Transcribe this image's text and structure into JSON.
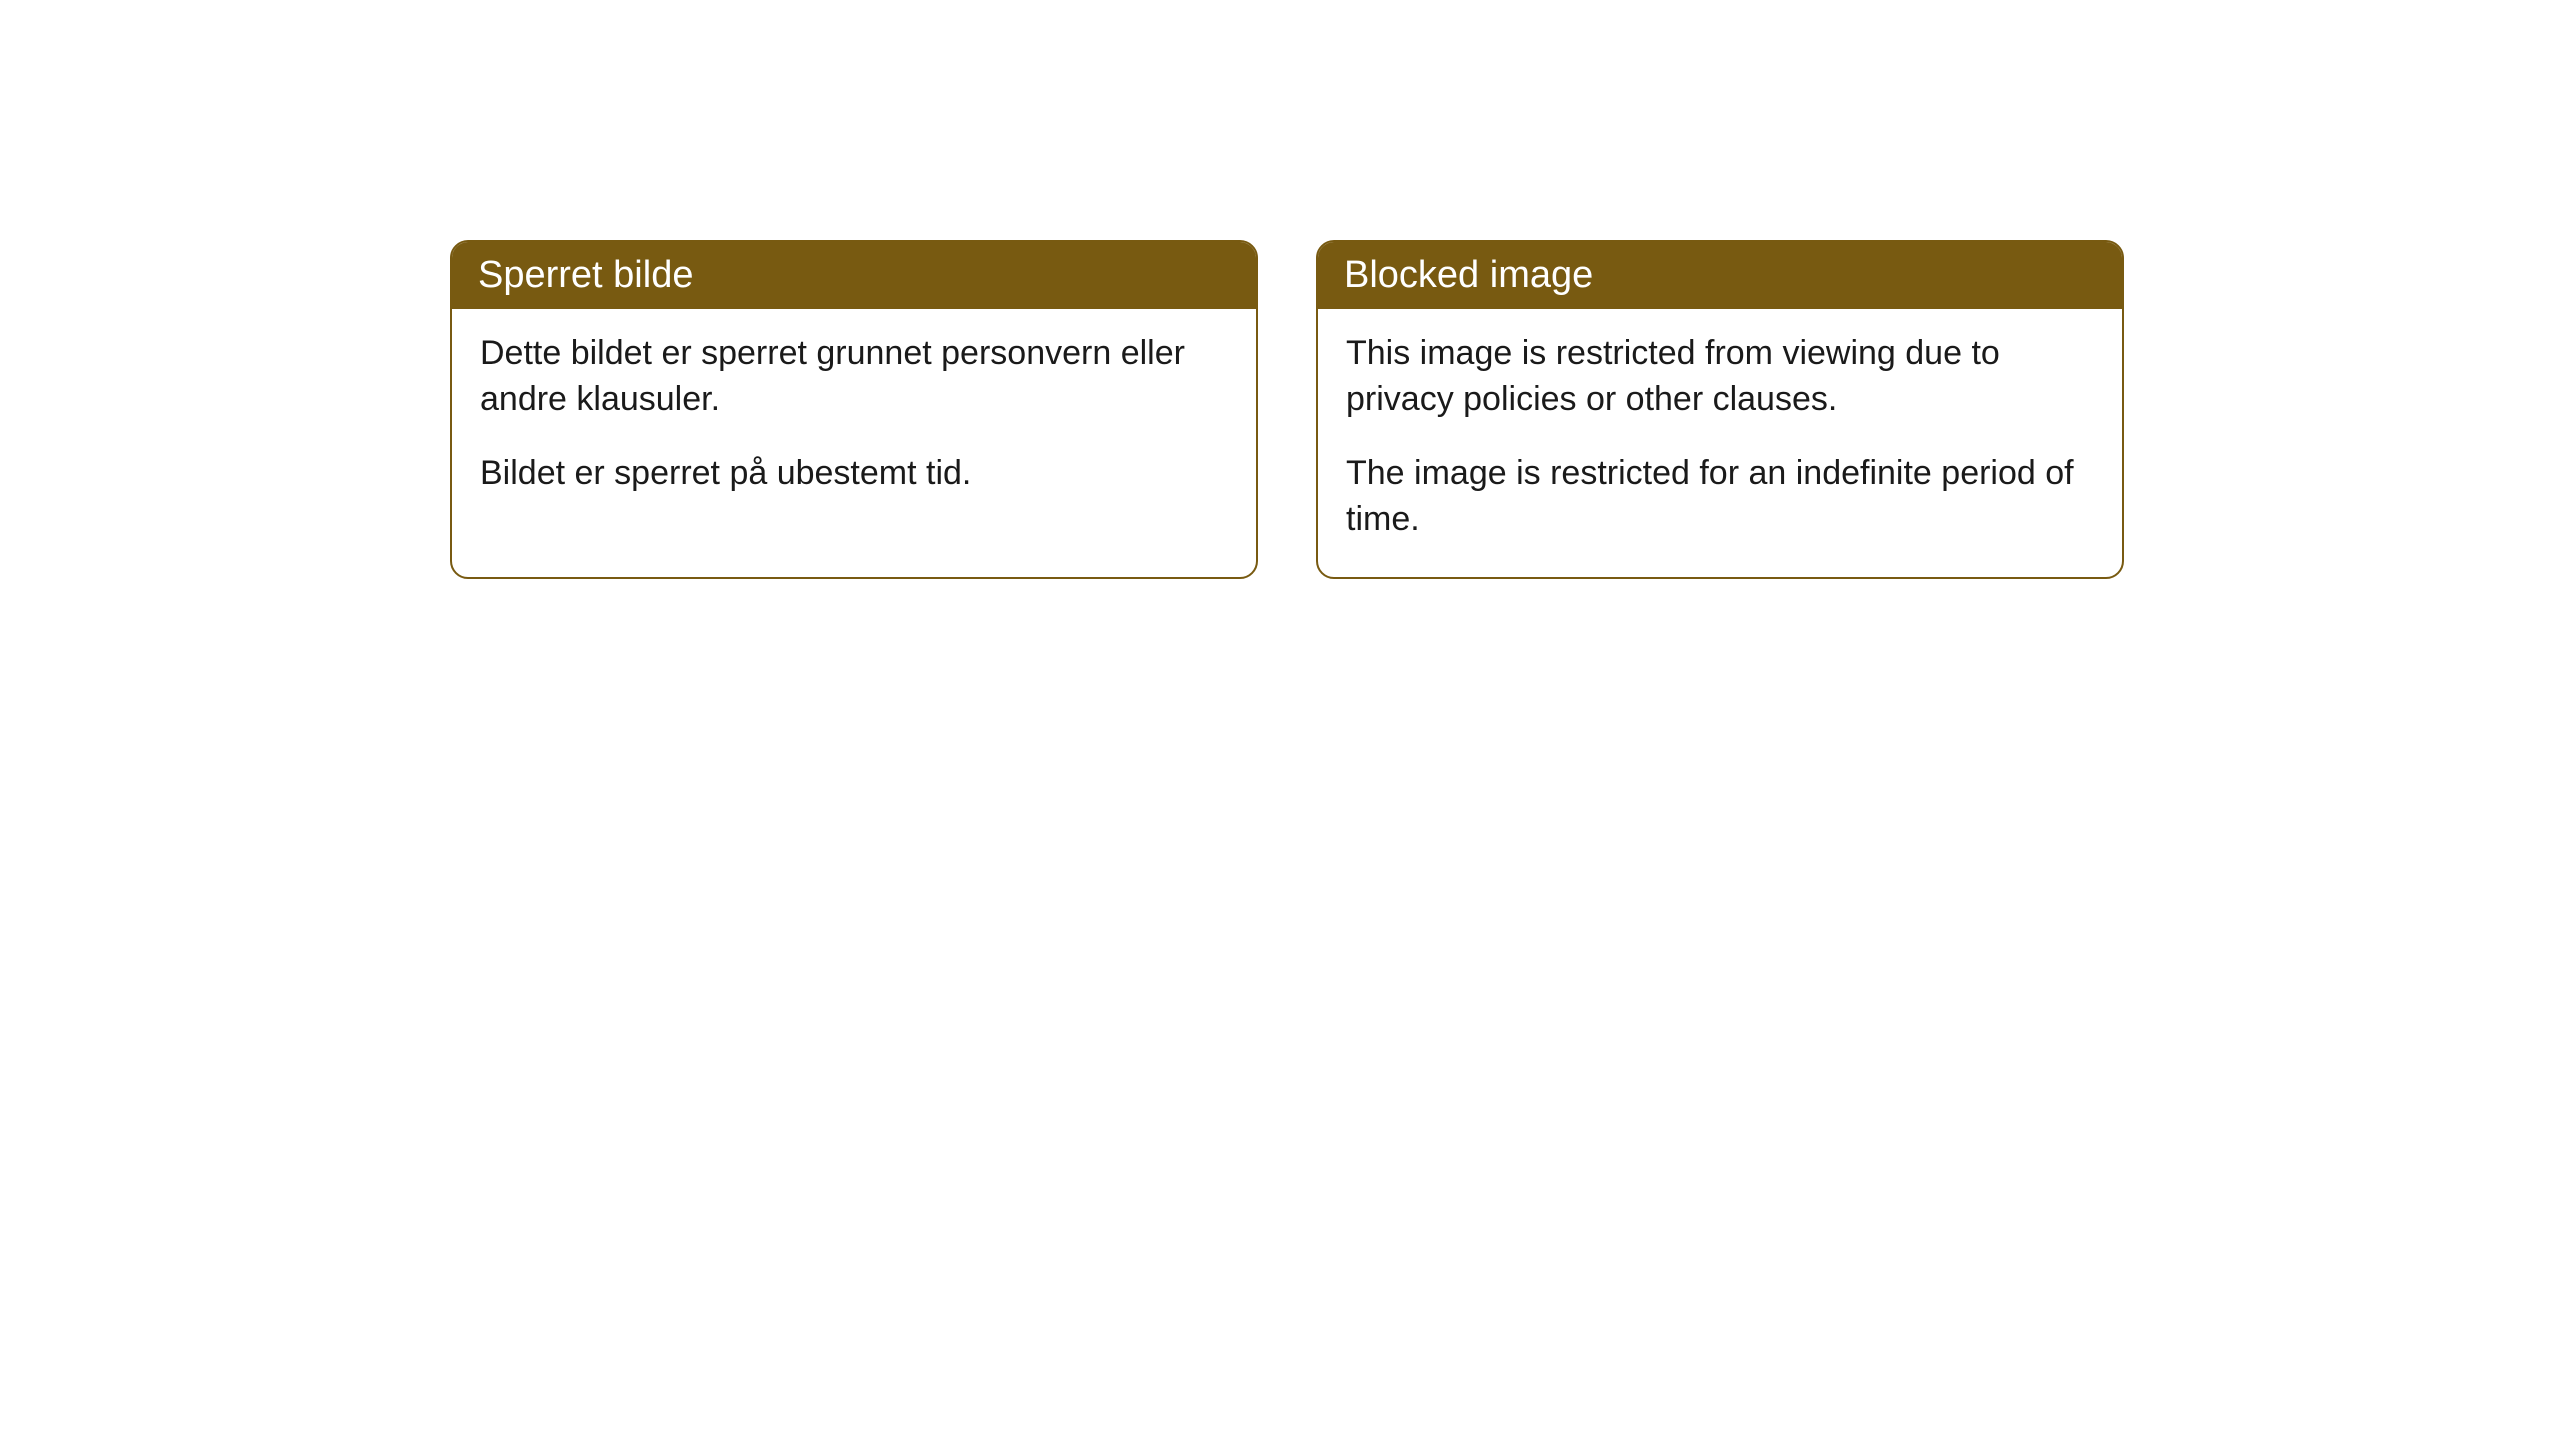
{
  "cards": [
    {
      "title": "Sperret bilde",
      "paragraph1": "Dette bildet er sperret grunnet personvern eller andre klausuler.",
      "paragraph2": "Bildet er sperret på ubestemt tid."
    },
    {
      "title": "Blocked image",
      "paragraph1": "This image is restricted from viewing due to privacy policies or other clauses.",
      "paragraph2": "The image is restricted for an indefinite period of time."
    }
  ],
  "style": {
    "header_bg_color": "#785a11",
    "header_text_color": "#ffffff",
    "border_color": "#785a11",
    "body_bg_color": "#ffffff",
    "body_text_color": "#1a1a1a",
    "border_radius": 18,
    "title_fontsize": 38,
    "body_fontsize": 34
  }
}
